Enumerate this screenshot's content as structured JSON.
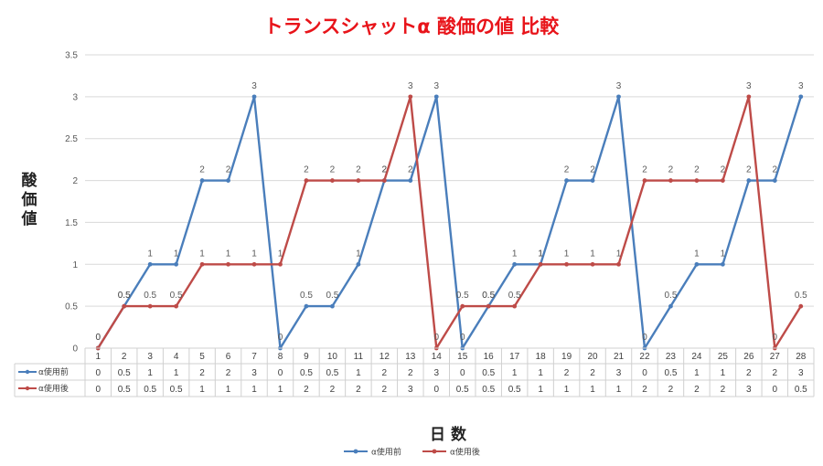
{
  "chart_data": {
    "type": "line",
    "title": "トランスシャットα 酸価の値 比較",
    "ylabel": "酸価値",
    "xlabel": "日 数",
    "ylim": [
      0,
      3.5
    ],
    "y_ticks": [
      "0",
      "0.5",
      "1",
      "1.5",
      "2",
      "2.5",
      "3",
      "3.5"
    ],
    "categories": [
      "1",
      "2",
      "3",
      "4",
      "5",
      "6",
      "7",
      "8",
      "9",
      "10",
      "11",
      "12",
      "13",
      "14",
      "15",
      "16",
      "17",
      "18",
      "19",
      "20",
      "21",
      "22",
      "23",
      "24",
      "25",
      "26",
      "27",
      "28"
    ],
    "series": [
      {
        "name": "α使用前",
        "color": "#4a7ebb",
        "values": [
          0,
          0.5,
          1,
          1,
          2,
          2,
          3,
          0,
          0.5,
          0.5,
          1,
          2,
          2,
          3,
          0,
          0.5,
          1,
          1,
          2,
          2,
          3,
          0,
          0.5,
          1,
          1,
          2,
          2,
          3
        ],
        "labels": [
          "0",
          "0.5",
          "1",
          "1",
          "2",
          "2",
          "3",
          "0",
          "0.5",
          "0.5",
          "1",
          "2",
          "2",
          "3",
          "0",
          "0.5",
          "1",
          "1",
          "2",
          "2",
          "3",
          "0",
          "0.5",
          "1",
          "1",
          "2",
          "2",
          "3"
        ]
      },
      {
        "name": "α使用後",
        "color": "#be4b48",
        "values": [
          0,
          0.5,
          0.5,
          0.5,
          1,
          1,
          1,
          1,
          2,
          2,
          2,
          2,
          3,
          0,
          0.5,
          0.5,
          0.5,
          1,
          1,
          1,
          1,
          2,
          2,
          2,
          2,
          3,
          0,
          0.5
        ],
        "labels": [
          "0",
          "0.5",
          "0.5",
          "0.5",
          "1",
          "1",
          "1",
          "1",
          "2",
          "2",
          "2",
          "2",
          "3",
          "0",
          "0.5",
          "0.5",
          "0.5",
          "1",
          "1",
          "1",
          "1",
          "2",
          "2",
          "2",
          "2",
          "3",
          "0",
          "0.5"
        ]
      }
    ],
    "grid": true,
    "data_table": true,
    "legend_position": "bottom"
  }
}
